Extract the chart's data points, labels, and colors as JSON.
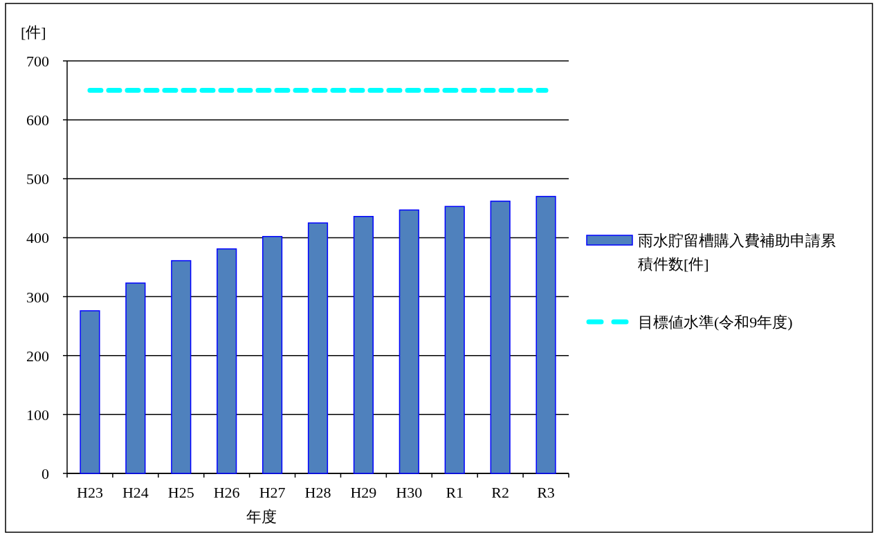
{
  "chart_data": {
    "type": "bar",
    "ylabel": "[件]",
    "xlabel": "年度",
    "categories": [
      "H23",
      "H24",
      "H25",
      "H26",
      "H27",
      "H28",
      "H29",
      "H30",
      "R1",
      "R2",
      "R3"
    ],
    "series": [
      {
        "name": "雨水貯留槽購入費補助申請累積件数[件]",
        "color": "#4f81bd",
        "values": [
          276,
          323,
          361,
          381,
          402,
          425,
          436,
          447,
          453,
          462,
          470
        ]
      },
      {
        "name": "目標値水準(令和9年度)",
        "type": "line",
        "color": "#00ffff",
        "line_style": "dashed",
        "values": [
          650,
          650,
          650,
          650,
          650,
          650,
          650,
          650,
          650,
          650,
          650
        ]
      }
    ],
    "ylim": [
      0,
      700
    ],
    "yticks": [
      0,
      100,
      200,
      300,
      400,
      500,
      600,
      700
    ],
    "grid": "y",
    "legend": "right"
  }
}
